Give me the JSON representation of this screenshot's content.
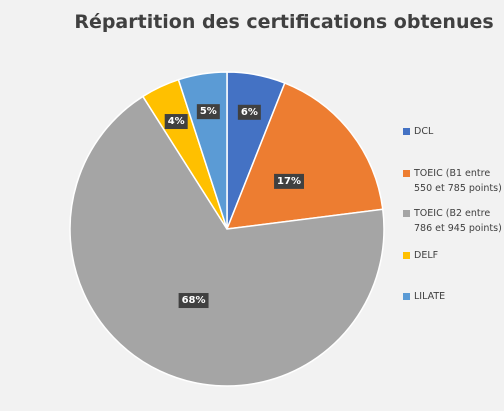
{
  "chart_data": {
    "type": "pie",
    "title": "Répartition des certifications obtenues",
    "categories": [
      "DCL",
      "TOEIC (B1 entre 550 et 785 points)",
      "TOEIC (B2 entre 786 et 945 points)",
      "DELF",
      "LILATE"
    ],
    "values": [
      6,
      17,
      68,
      4,
      5
    ],
    "value_labels": [
      "6%",
      "17%",
      "68%",
      "4%",
      "5%"
    ],
    "colors": [
      "#4472c4",
      "#ed7d31",
      "#a5a5a5",
      "#ffc000",
      "#5b9bd5"
    ],
    "legend": "right"
  }
}
